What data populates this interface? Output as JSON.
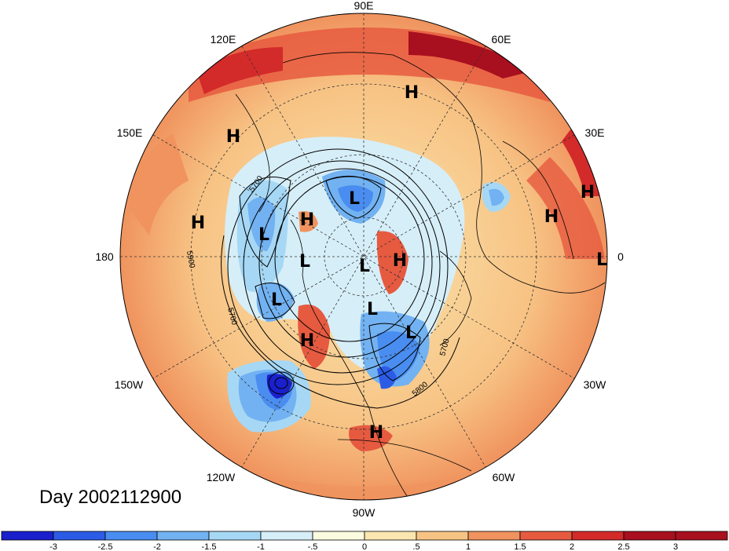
{
  "map": {
    "projection": "north polar stereographic",
    "lon_labels": [
      {
        "text": "90E",
        "lon_deg": 90
      },
      {
        "text": "60E",
        "lon_deg": 60
      },
      {
        "text": "30E",
        "lon_deg": 30
      },
      {
        "text": "0",
        "lon_deg": 0
      },
      {
        "text": "30W",
        "lon_deg": -30
      },
      {
        "text": "60W",
        "lon_deg": -60
      },
      {
        "text": "90W",
        "lon_deg": -90
      },
      {
        "text": "120W",
        "lon_deg": -120
      },
      {
        "text": "150W",
        "lon_deg": -150
      },
      {
        "text": "180",
        "lon_deg": 180
      },
      {
        "text": "150E",
        "lon_deg": 150
      },
      {
        "text": "120E",
        "lon_deg": 120
      }
    ],
    "pressure_centers": [
      "H",
      "H",
      "H",
      "H",
      "H",
      "H",
      "H",
      "H",
      "H",
      "L",
      "L",
      "L",
      "L",
      "L",
      "L",
      "L",
      "L"
    ],
    "contour_labels": [
      "5700",
      "5900",
      "5700",
      "5700",
      "5800"
    ]
  },
  "day_label": "Day 2002112900",
  "colorbar": {
    "ticks": [
      "-3",
      "-2.5",
      "-2",
      "-1.5",
      "-1",
      "-.5",
      "0",
      ".5",
      "1",
      "1.5",
      "2",
      "2.5",
      "3"
    ],
    "colors": [
      "#1a20cc",
      "#2c5ce6",
      "#4a8df0",
      "#72b2f2",
      "#a6d8f5",
      "#d6eef8",
      "#fbfbe0",
      "#fbe6b0",
      "#f7c384",
      "#f0935e",
      "#e65a40",
      "#d32a2a",
      "#a80f1f",
      "#a80f1f"
    ]
  }
}
